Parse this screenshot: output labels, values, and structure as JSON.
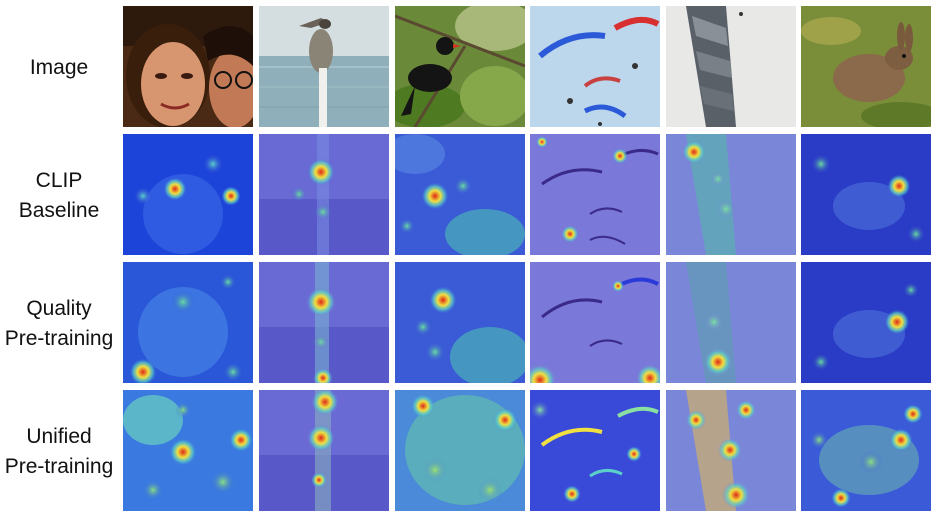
{
  "rows": [
    {
      "label_lines": [
        "Image"
      ]
    },
    {
      "label_lines": [
        "CLIP",
        "Baseline"
      ]
    },
    {
      "label_lines": [
        "Quality",
        "Pre-training"
      ]
    },
    {
      "label_lines": [
        "Unified",
        "Pre-training"
      ]
    }
  ],
  "subjects": [
    "woman-faces",
    "pelican",
    "bird-on-branch",
    "paragliders",
    "folded-paper",
    "rabbit"
  ],
  "panel_kinds": [
    "photo",
    "attention-map",
    "attention-map",
    "attention-map"
  ],
  "colors": {
    "map_base": "#3a48d8",
    "map_low": "#4a7ae8",
    "map_mid": "#5ad0c8",
    "map_high": "#f0e040",
    "map_peak": "#e02818"
  }
}
